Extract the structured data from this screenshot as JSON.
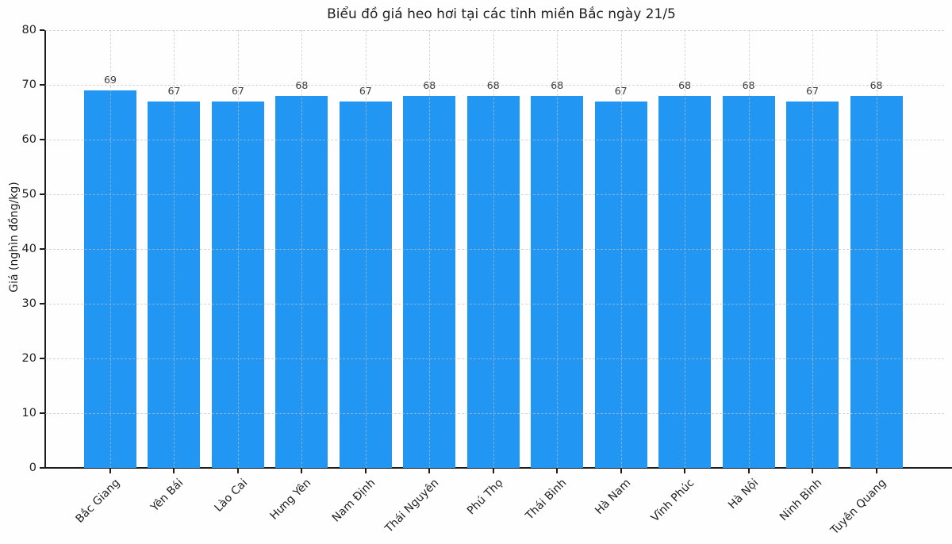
{
  "chart_data": {
    "type": "bar",
    "title": "Biểu đồ giá heo hơi tại các tỉnh miền Bắc ngày 21/5",
    "xlabel": "",
    "ylabel": "Giá (nghìn đồng/kg)",
    "categories": [
      "Bắc Giang",
      "Yên Bái",
      "Lào Cai",
      "Hưng Yên",
      "Nam Định",
      "Thái Nguyên",
      "Phú Thọ",
      "Thái Bình",
      "Hà Nam",
      "Vĩnh Phúc",
      "Hà Nội",
      "Ninh Bình",
      "Tuyên Quang"
    ],
    "values": [
      69,
      67,
      67,
      68,
      67,
      68,
      68,
      68,
      67,
      68,
      68,
      67,
      68
    ],
    "value_labels_shown": true,
    "ylim": [
      0,
      80
    ],
    "yticks": [
      0,
      10,
      20,
      30,
      40,
      50,
      60,
      70,
      80
    ],
    "grid": "dashed, horizontal and vertical",
    "legend": "none",
    "bar_color": "#2196f3",
    "axis_color": "#1c1c1c",
    "grid_color": "#bebebe",
    "value_label_color": "#3d3d3d",
    "background_color": "#fefefe"
  }
}
